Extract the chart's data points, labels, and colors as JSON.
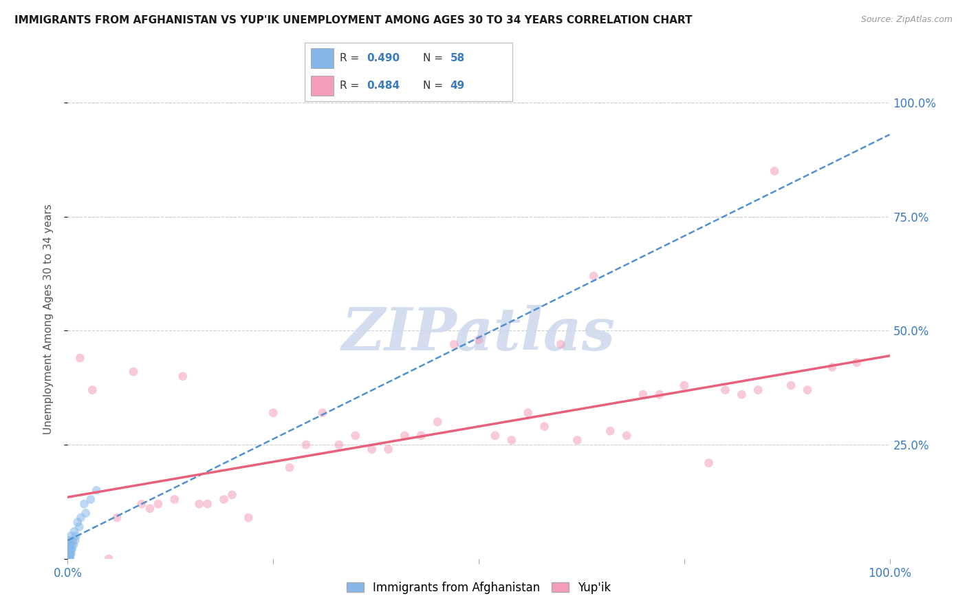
{
  "title": "IMMIGRANTS FROM AFGHANISTAN VS YUP'IK UNEMPLOYMENT AMONG AGES 30 TO 34 YEARS CORRELATION CHART",
  "source": "Source: ZipAtlas.com",
  "ylabel": "Unemployment Among Ages 30 to 34 years",
  "r_blue": "0.490",
  "n_blue": "58",
  "r_pink": "0.484",
  "n_pink": "49",
  "legend_label_blue": "Immigrants from Afghanistan",
  "legend_label_pink": "Yup'ik",
  "bg_color": "#ffffff",
  "blue_color": "#85b8e8",
  "pink_color": "#f49db8",
  "blue_line_color": "#5090d0",
  "pink_line_color": "#e8607a",
  "title_color": "#1a1a1a",
  "axis_label_color": "#555555",
  "tick_color": "#3a7abf",
  "watermark_text": "ZIPatlas",
  "watermark_color": "#ccd8ec",
  "blue_x": [
    0.001,
    0.001,
    0.001,
    0.002,
    0.001,
    0.001,
    0.002,
    0.001,
    0.001,
    0.001,
    0.001,
    0.001,
    0.001,
    0.001,
    0.001,
    0.001,
    0.001,
    0.001,
    0.001,
    0.001,
    0.001,
    0.001,
    0.001,
    0.001,
    0.001,
    0.001,
    0.001,
    0.001,
    0.001,
    0.001,
    0.002,
    0.002,
    0.002,
    0.002,
    0.002,
    0.002,
    0.002,
    0.003,
    0.003,
    0.003,
    0.003,
    0.004,
    0.004,
    0.004,
    0.005,
    0.005,
    0.006,
    0.007,
    0.008,
    0.009,
    0.01,
    0.012,
    0.014,
    0.016,
    0.02,
    0.022,
    0.028,
    0.035
  ],
  "blue_y": [
    0.0,
    0.0,
    0.0,
    0.0,
    0.0,
    0.0,
    0.0,
    0.0,
    0.0,
    0.0,
    0.0,
    0.0,
    0.0,
    0.0,
    0.0,
    0.0,
    0.0,
    0.0,
    0.0,
    0.0,
    0.0,
    0.0,
    0.0,
    0.01,
    0.01,
    0.01,
    0.01,
    0.01,
    0.02,
    0.02,
    0.0,
    0.0,
    0.01,
    0.01,
    0.02,
    0.03,
    0.04,
    0.0,
    0.01,
    0.02,
    0.03,
    0.01,
    0.02,
    0.05,
    0.02,
    0.03,
    0.04,
    0.03,
    0.06,
    0.04,
    0.05,
    0.08,
    0.07,
    0.09,
    0.12,
    0.1,
    0.13,
    0.15
  ],
  "pink_x": [
    0.015,
    0.03,
    0.05,
    0.06,
    0.08,
    0.09,
    0.1,
    0.11,
    0.13,
    0.14,
    0.16,
    0.17,
    0.19,
    0.2,
    0.22,
    0.25,
    0.27,
    0.29,
    0.31,
    0.33,
    0.35,
    0.37,
    0.39,
    0.41,
    0.43,
    0.45,
    0.47,
    0.5,
    0.52,
    0.54,
    0.56,
    0.58,
    0.6,
    0.62,
    0.64,
    0.66,
    0.68,
    0.7,
    0.72,
    0.75,
    0.78,
    0.8,
    0.82,
    0.84,
    0.86,
    0.88,
    0.9,
    0.93,
    0.96
  ],
  "pink_y": [
    0.44,
    0.37,
    0.0,
    0.09,
    0.41,
    0.12,
    0.11,
    0.12,
    0.13,
    0.4,
    0.12,
    0.12,
    0.13,
    0.14,
    0.09,
    0.32,
    0.2,
    0.25,
    0.32,
    0.25,
    0.27,
    0.24,
    0.24,
    0.27,
    0.27,
    0.3,
    0.47,
    0.48,
    0.27,
    0.26,
    0.32,
    0.29,
    0.47,
    0.26,
    0.62,
    0.28,
    0.27,
    0.36,
    0.36,
    0.38,
    0.21,
    0.37,
    0.36,
    0.37,
    0.85,
    0.38,
    0.37,
    0.42,
    0.43
  ],
  "blue_trend_x0": 0.0,
  "blue_trend_y0": 0.04,
  "blue_trend_x1": 1.0,
  "blue_trend_y1": 0.93,
  "pink_trend_x0": 0.0,
  "pink_trend_y0": 0.135,
  "pink_trend_x1": 1.0,
  "pink_trend_y1": 0.445,
  "xlim": [
    0.0,
    1.0
  ],
  "ylim": [
    0.0,
    1.05
  ],
  "xticks": [
    0.0,
    0.25,
    0.5,
    0.75,
    1.0
  ],
  "xticklabels": [
    "0.0%",
    "",
    "",
    "",
    "100.0%"
  ],
  "yticks_right": [
    0.25,
    0.5,
    0.75,
    1.0
  ],
  "yticklabels_right": [
    "25.0%",
    "50.0%",
    "75.0%",
    "100.0%"
  ],
  "grid_color": "#cccccc",
  "marker_size": 85,
  "marker_alpha": 0.55
}
